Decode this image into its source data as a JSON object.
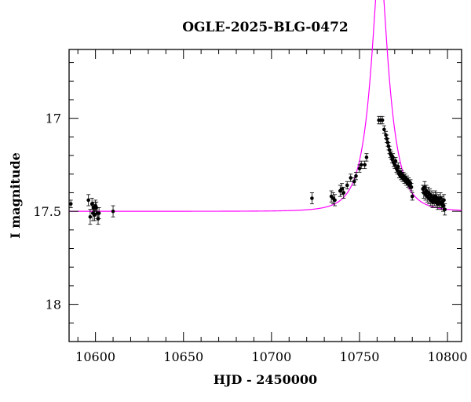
{
  "chart_data": {
    "type": "scatter",
    "title": "OGLE-2025-BLG-0472",
    "xlabel": "HJD - 2450000",
    "ylabel": "I magnitude",
    "xlim": [
      10585,
      10808
    ],
    "ylim": [
      18.2,
      16.63
    ],
    "y_inverted": true,
    "x_ticks": [
      10600,
      10650,
      10700,
      10750,
      10800
    ],
    "y_ticks": [
      17,
      17.5,
      18
    ],
    "x_tick_labels": [
      "10600",
      "10650",
      "10700",
      "10750",
      "10800"
    ],
    "y_tick_labels": [
      "17",
      "17.5",
      "18"
    ],
    "grid": false,
    "series": [
      {
        "kind": "points_with_errorbars",
        "color": "#000000",
        "points": [
          [
            10586,
            17.46,
            0.02
          ],
          [
            10596,
            17.44,
            0.03
          ],
          [
            10597,
            17.53,
            0.04
          ],
          [
            10598,
            17.46,
            0.03
          ],
          [
            10598.5,
            17.51,
            0.04
          ],
          [
            10599,
            17.48,
            0.03
          ],
          [
            10599.5,
            17.52,
            0.03
          ],
          [
            10600,
            17.47,
            0.03
          ],
          [
            10600.5,
            17.48,
            0.03
          ],
          [
            10601,
            17.51,
            0.03
          ],
          [
            10601.5,
            17.54,
            0.03
          ],
          [
            10602,
            17.51,
            0.03
          ],
          [
            10610,
            17.5,
            0.03
          ],
          [
            10723,
            17.43,
            0.03
          ],
          [
            10734,
            17.42,
            0.03
          ],
          [
            10735,
            17.43,
            0.03
          ],
          [
            10736,
            17.44,
            0.03
          ],
          [
            10739,
            17.39,
            0.03
          ],
          [
            10740,
            17.38,
            0.03
          ],
          [
            10741,
            17.4,
            0.03
          ],
          [
            10743,
            17.36,
            0.02
          ],
          [
            10745,
            17.32,
            0.02
          ],
          [
            10747,
            17.34,
            0.02
          ],
          [
            10748,
            17.31,
            0.02
          ],
          [
            10750,
            17.27,
            0.02
          ],
          [
            10751,
            17.25,
            0.02
          ],
          [
            10753,
            17.25,
            0.02
          ],
          [
            10754,
            17.21,
            0.02
          ],
          [
            10761,
            17.01,
            0.02
          ],
          [
            10762,
            17.01,
            0.02
          ],
          [
            10763,
            17.01,
            0.02
          ],
          [
            10764,
            17.06,
            0.02
          ],
          [
            10765,
            17.09,
            0.02
          ],
          [
            10765.5,
            17.11,
            0.02
          ],
          [
            10766,
            17.13,
            0.02
          ],
          [
            10766.5,
            17.15,
            0.02
          ],
          [
            10767,
            17.17,
            0.02
          ],
          [
            10767.5,
            17.19,
            0.02
          ],
          [
            10768,
            17.2,
            0.02
          ],
          [
            10768.5,
            17.22,
            0.02
          ],
          [
            10769,
            17.21,
            0.02
          ],
          [
            10769.5,
            17.24,
            0.02
          ],
          [
            10770,
            17.25,
            0.02
          ],
          [
            10770.5,
            17.23,
            0.02
          ],
          [
            10771,
            17.27,
            0.02
          ],
          [
            10771.5,
            17.28,
            0.02
          ],
          [
            10772,
            17.26,
            0.02
          ],
          [
            10772.5,
            17.3,
            0.02
          ],
          [
            10773,
            17.29,
            0.02
          ],
          [
            10773.5,
            17.31,
            0.02
          ],
          [
            10774,
            17.3,
            0.02
          ],
          [
            10774.5,
            17.32,
            0.02
          ],
          [
            10775,
            17.31,
            0.02
          ],
          [
            10775.5,
            17.33,
            0.02
          ],
          [
            10776,
            17.32,
            0.02
          ],
          [
            10776.5,
            17.34,
            0.02
          ],
          [
            10777,
            17.33,
            0.02
          ],
          [
            10777.5,
            17.35,
            0.02
          ],
          [
            10778,
            17.34,
            0.02
          ],
          [
            10778.5,
            17.36,
            0.02
          ],
          [
            10779,
            17.35,
            0.02
          ],
          [
            10779.5,
            17.37,
            0.02
          ],
          [
            10780,
            17.42,
            0.02
          ],
          [
            10786,
            17.38,
            0.02
          ],
          [
            10786.5,
            17.4,
            0.03
          ],
          [
            10787,
            17.37,
            0.03
          ],
          [
            10787.5,
            17.41,
            0.03
          ],
          [
            10788,
            17.39,
            0.03
          ],
          [
            10788.5,
            17.42,
            0.03
          ],
          [
            10789,
            17.4,
            0.03
          ],
          [
            10789.5,
            17.43,
            0.03
          ],
          [
            10790,
            17.41,
            0.03
          ],
          [
            10790.5,
            17.44,
            0.03
          ],
          [
            10791,
            17.42,
            0.03
          ],
          [
            10791.5,
            17.45,
            0.03
          ],
          [
            10792,
            17.43,
            0.03
          ],
          [
            10792.5,
            17.44,
            0.03
          ],
          [
            10793,
            17.42,
            0.03
          ],
          [
            10793.5,
            17.45,
            0.03
          ],
          [
            10794,
            17.43,
            0.03
          ],
          [
            10794.5,
            17.46,
            0.03
          ],
          [
            10795,
            17.44,
            0.03
          ],
          [
            10795.5,
            17.45,
            0.03
          ],
          [
            10796,
            17.43,
            0.03
          ],
          [
            10796.5,
            17.46,
            0.03
          ],
          [
            10797,
            17.45,
            0.03
          ],
          [
            10797.5,
            17.47,
            0.03
          ],
          [
            10798,
            17.44,
            0.03
          ],
          [
            10798.5,
            17.49,
            0.03
          ]
        ]
      },
      {
        "kind": "model_curve",
        "color": "#ff00ff",
        "baseline": 17.5,
        "t0": 10761.5,
        "u0": 0.3,
        "tE": 11.0,
        "x_from": 10585,
        "x_to": 10808
      }
    ]
  }
}
